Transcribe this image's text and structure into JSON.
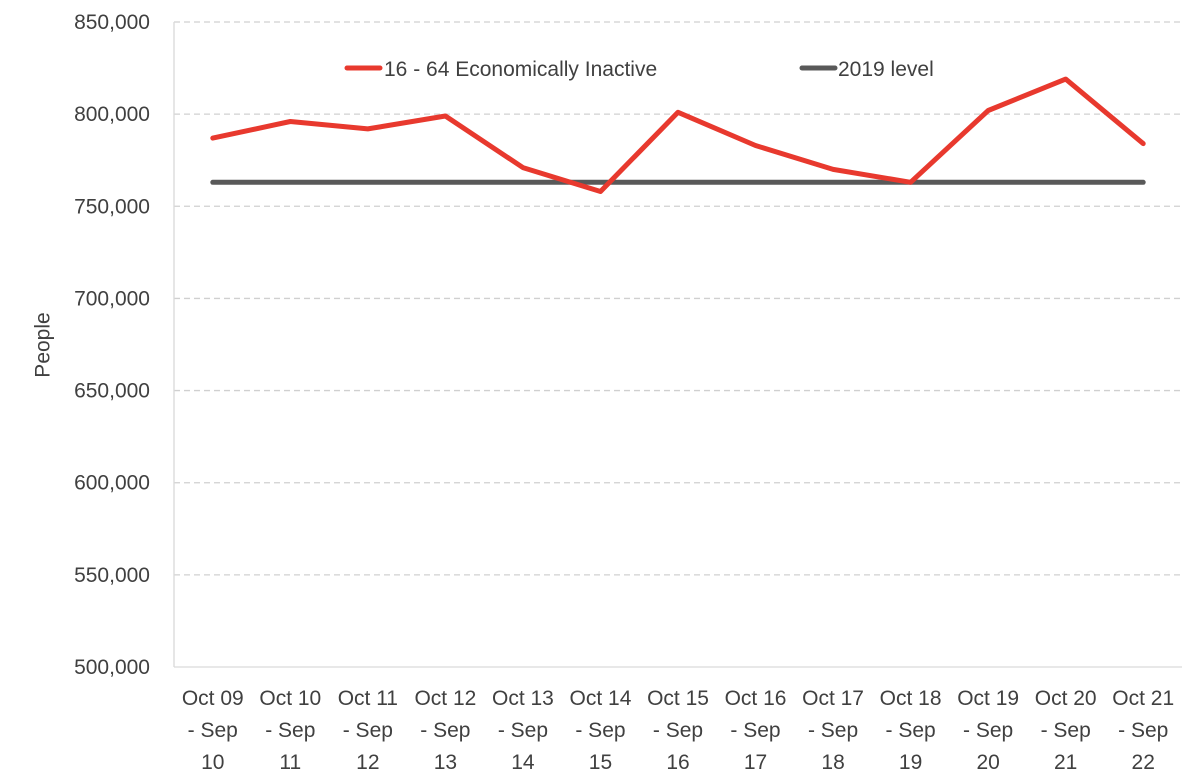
{
  "chart_data": {
    "type": "line",
    "title": "",
    "xlabel": "",
    "ylabel": "People",
    "ylim": [
      500000,
      850000
    ],
    "yticks": [
      500000,
      550000,
      600000,
      650000,
      700000,
      750000,
      800000,
      850000
    ],
    "ytick_labels": [
      "500,000",
      "550,000",
      "600,000",
      "650,000",
      "700,000",
      "750,000",
      "800,000",
      "850,000"
    ],
    "grid": "horizontal dashed",
    "legend_position": "top",
    "categories": [
      [
        "Oct 09",
        "- Sep",
        "10"
      ],
      [
        "Oct 10",
        "- Sep",
        "11"
      ],
      [
        "Oct 11",
        "- Sep",
        "12"
      ],
      [
        "Oct 12",
        "- Sep",
        "13"
      ],
      [
        "Oct 13",
        "- Sep",
        "14"
      ],
      [
        "Oct 14",
        "- Sep",
        "15"
      ],
      [
        "Oct 15",
        "- Sep",
        "16"
      ],
      [
        "Oct 16",
        "- Sep",
        "17"
      ],
      [
        "Oct 17",
        "- Sep",
        "18"
      ],
      [
        "Oct 18",
        "- Sep",
        "19"
      ],
      [
        "Oct 19",
        "- Sep",
        "20"
      ],
      [
        "Oct 20",
        "- Sep",
        "21"
      ],
      [
        "Oct 21",
        "- Sep",
        "22"
      ]
    ],
    "series": [
      {
        "name": "16 - 64 Economically Inactive",
        "color": "#e8392e",
        "values": [
          787000,
          796000,
          792000,
          799000,
          771000,
          758000,
          801000,
          783000,
          770000,
          763000,
          802000,
          819000,
          784000
        ]
      },
      {
        "name": "2019 level",
        "color": "#595959",
        "values": [
          763000,
          763000,
          763000,
          763000,
          763000,
          763000,
          763000,
          763000,
          763000,
          763000,
          763000,
          763000,
          763000
        ]
      }
    ]
  }
}
